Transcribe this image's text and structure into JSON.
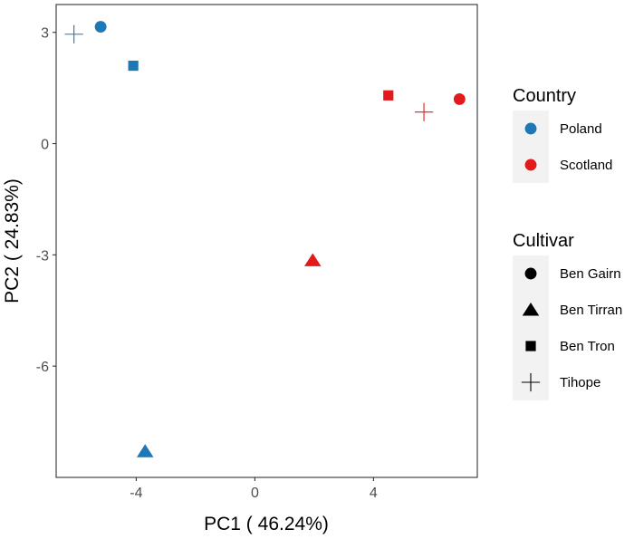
{
  "chart_data": {
    "type": "scatter",
    "xlabel": "PC1 ( 46.24%)",
    "ylabel": "PC2 ( 24.83%)",
    "xlim": [
      -6.7,
      7.5
    ],
    "ylim": [
      -9.0,
      3.75
    ],
    "xticks": [
      {
        "value": -4,
        "label": "-4"
      },
      {
        "value": 0,
        "label": "0"
      },
      {
        "value": 4,
        "label": "4"
      }
    ],
    "yticks": [
      {
        "value": 3,
        "label": "3"
      },
      {
        "value": 0,
        "label": "0"
      },
      {
        "value": -3,
        "label": "-3"
      },
      {
        "value": -6,
        "label": "-6"
      }
    ],
    "grid": false,
    "legend_placement": "right",
    "colors": {
      "Poland": "#1f77b4",
      "Scotland": "#e31a1c",
      "legend_key": "#000000",
      "legend_bg": "#f2f2f2"
    },
    "legends": [
      {
        "title": "Country",
        "entries": [
          {
            "label": "Poland",
            "shape": "circle",
            "color": "#1f77b4"
          },
          {
            "label": "Scotland",
            "shape": "circle",
            "color": "#e31a1c"
          }
        ]
      },
      {
        "title": "Cultivar",
        "entries": [
          {
            "label": "Ben Gairn",
            "shape": "circle",
            "color": "#000000"
          },
          {
            "label": "Ben Tirran",
            "shape": "triangle",
            "color": "#000000"
          },
          {
            "label": "Ben Tron",
            "shape": "square",
            "color": "#000000"
          },
          {
            "label": "Tihope",
            "shape": "plus",
            "color": "#000000"
          }
        ]
      }
    ],
    "points": [
      {
        "x": -5.2,
        "y": 3.15,
        "country": "Poland",
        "cultivar": "Ben Gairn",
        "shape": "circle"
      },
      {
        "x": -6.1,
        "y": 2.95,
        "country": "Poland",
        "cultivar": "Tihope",
        "shape": "plus"
      },
      {
        "x": -4.1,
        "y": 2.1,
        "country": "Poland",
        "cultivar": "Ben Tron",
        "shape": "square"
      },
      {
        "x": -3.7,
        "y": -8.3,
        "country": "Poland",
        "cultivar": "Ben Tirran",
        "shape": "triangle"
      },
      {
        "x": 4.5,
        "y": 1.3,
        "country": "Scotland",
        "cultivar": "Ben Tron",
        "shape": "square"
      },
      {
        "x": 5.7,
        "y": 0.85,
        "country": "Scotland",
        "cultivar": "Tihope",
        "shape": "plus"
      },
      {
        "x": 6.9,
        "y": 1.2,
        "country": "Scotland",
        "cultivar": "Ben Gairn",
        "shape": "circle"
      },
      {
        "x": 1.95,
        "y": -3.15,
        "country": "Scotland",
        "cultivar": "Ben Tirran",
        "shape": "triangle"
      }
    ]
  }
}
